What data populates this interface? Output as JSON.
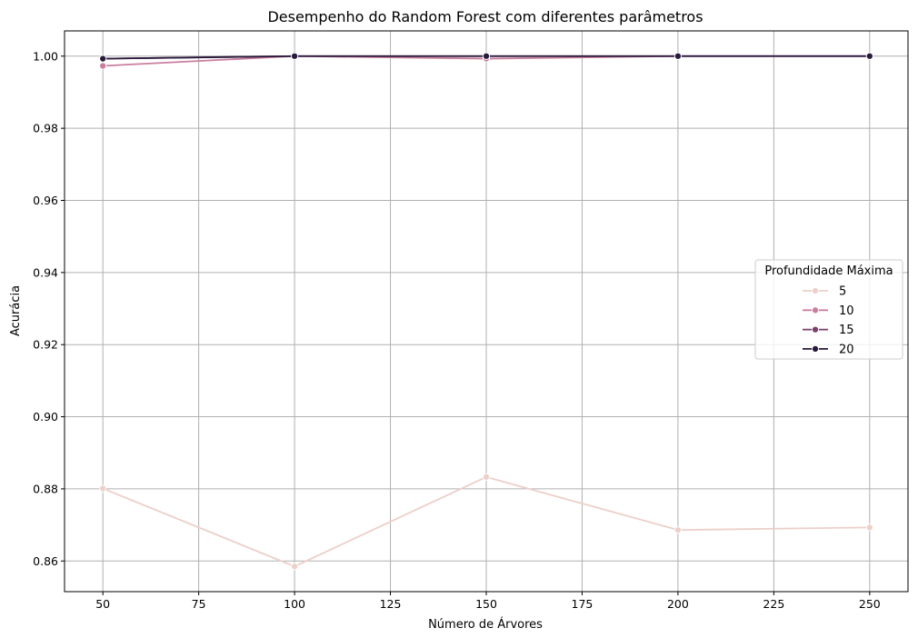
{
  "chart_data": {
    "type": "line",
    "title": "Desempenho do Random Forest com diferentes parâmetros",
    "xlabel": "Número de Árvores",
    "ylabel": "Acurácia",
    "x": [
      50,
      100,
      150,
      200,
      250
    ],
    "xlim": [
      40,
      260
    ],
    "ylim": [
      0.8515,
      1.007
    ],
    "xticks": [
      50,
      75,
      100,
      125,
      150,
      175,
      200,
      225,
      250
    ],
    "yticks": [
      0.86,
      0.88,
      0.9,
      0.92,
      0.94,
      0.96,
      0.98,
      1.0
    ],
    "xtick_labels": [
      "50",
      "75",
      "100",
      "125",
      "150",
      "175",
      "200",
      "225",
      "250"
    ],
    "ytick_labels": [
      "0.86",
      "0.88",
      "0.90",
      "0.92",
      "0.94",
      "0.96",
      "0.98",
      "1.00"
    ],
    "grid": true,
    "legend": {
      "title": "Profundidade Máxima",
      "placement": "center-right"
    },
    "series": [
      {
        "name": "5",
        "color": "#ecd0c9",
        "values": [
          0.8801,
          0.8585,
          0.8833,
          0.8686,
          0.8693
        ]
      },
      {
        "name": "10",
        "color": "#c97e9e",
        "values": [
          0.9973,
          1.0,
          0.9993,
          1.0,
          1.0
        ]
      },
      {
        "name": "15",
        "color": "#7b3f6e",
        "values": [
          0.9993,
          1.0,
          1.0,
          1.0,
          1.0
        ]
      },
      {
        "name": "20",
        "color": "#281a3b",
        "values": [
          0.9993,
          1.0,
          1.0,
          1.0,
          1.0
        ]
      }
    ]
  }
}
